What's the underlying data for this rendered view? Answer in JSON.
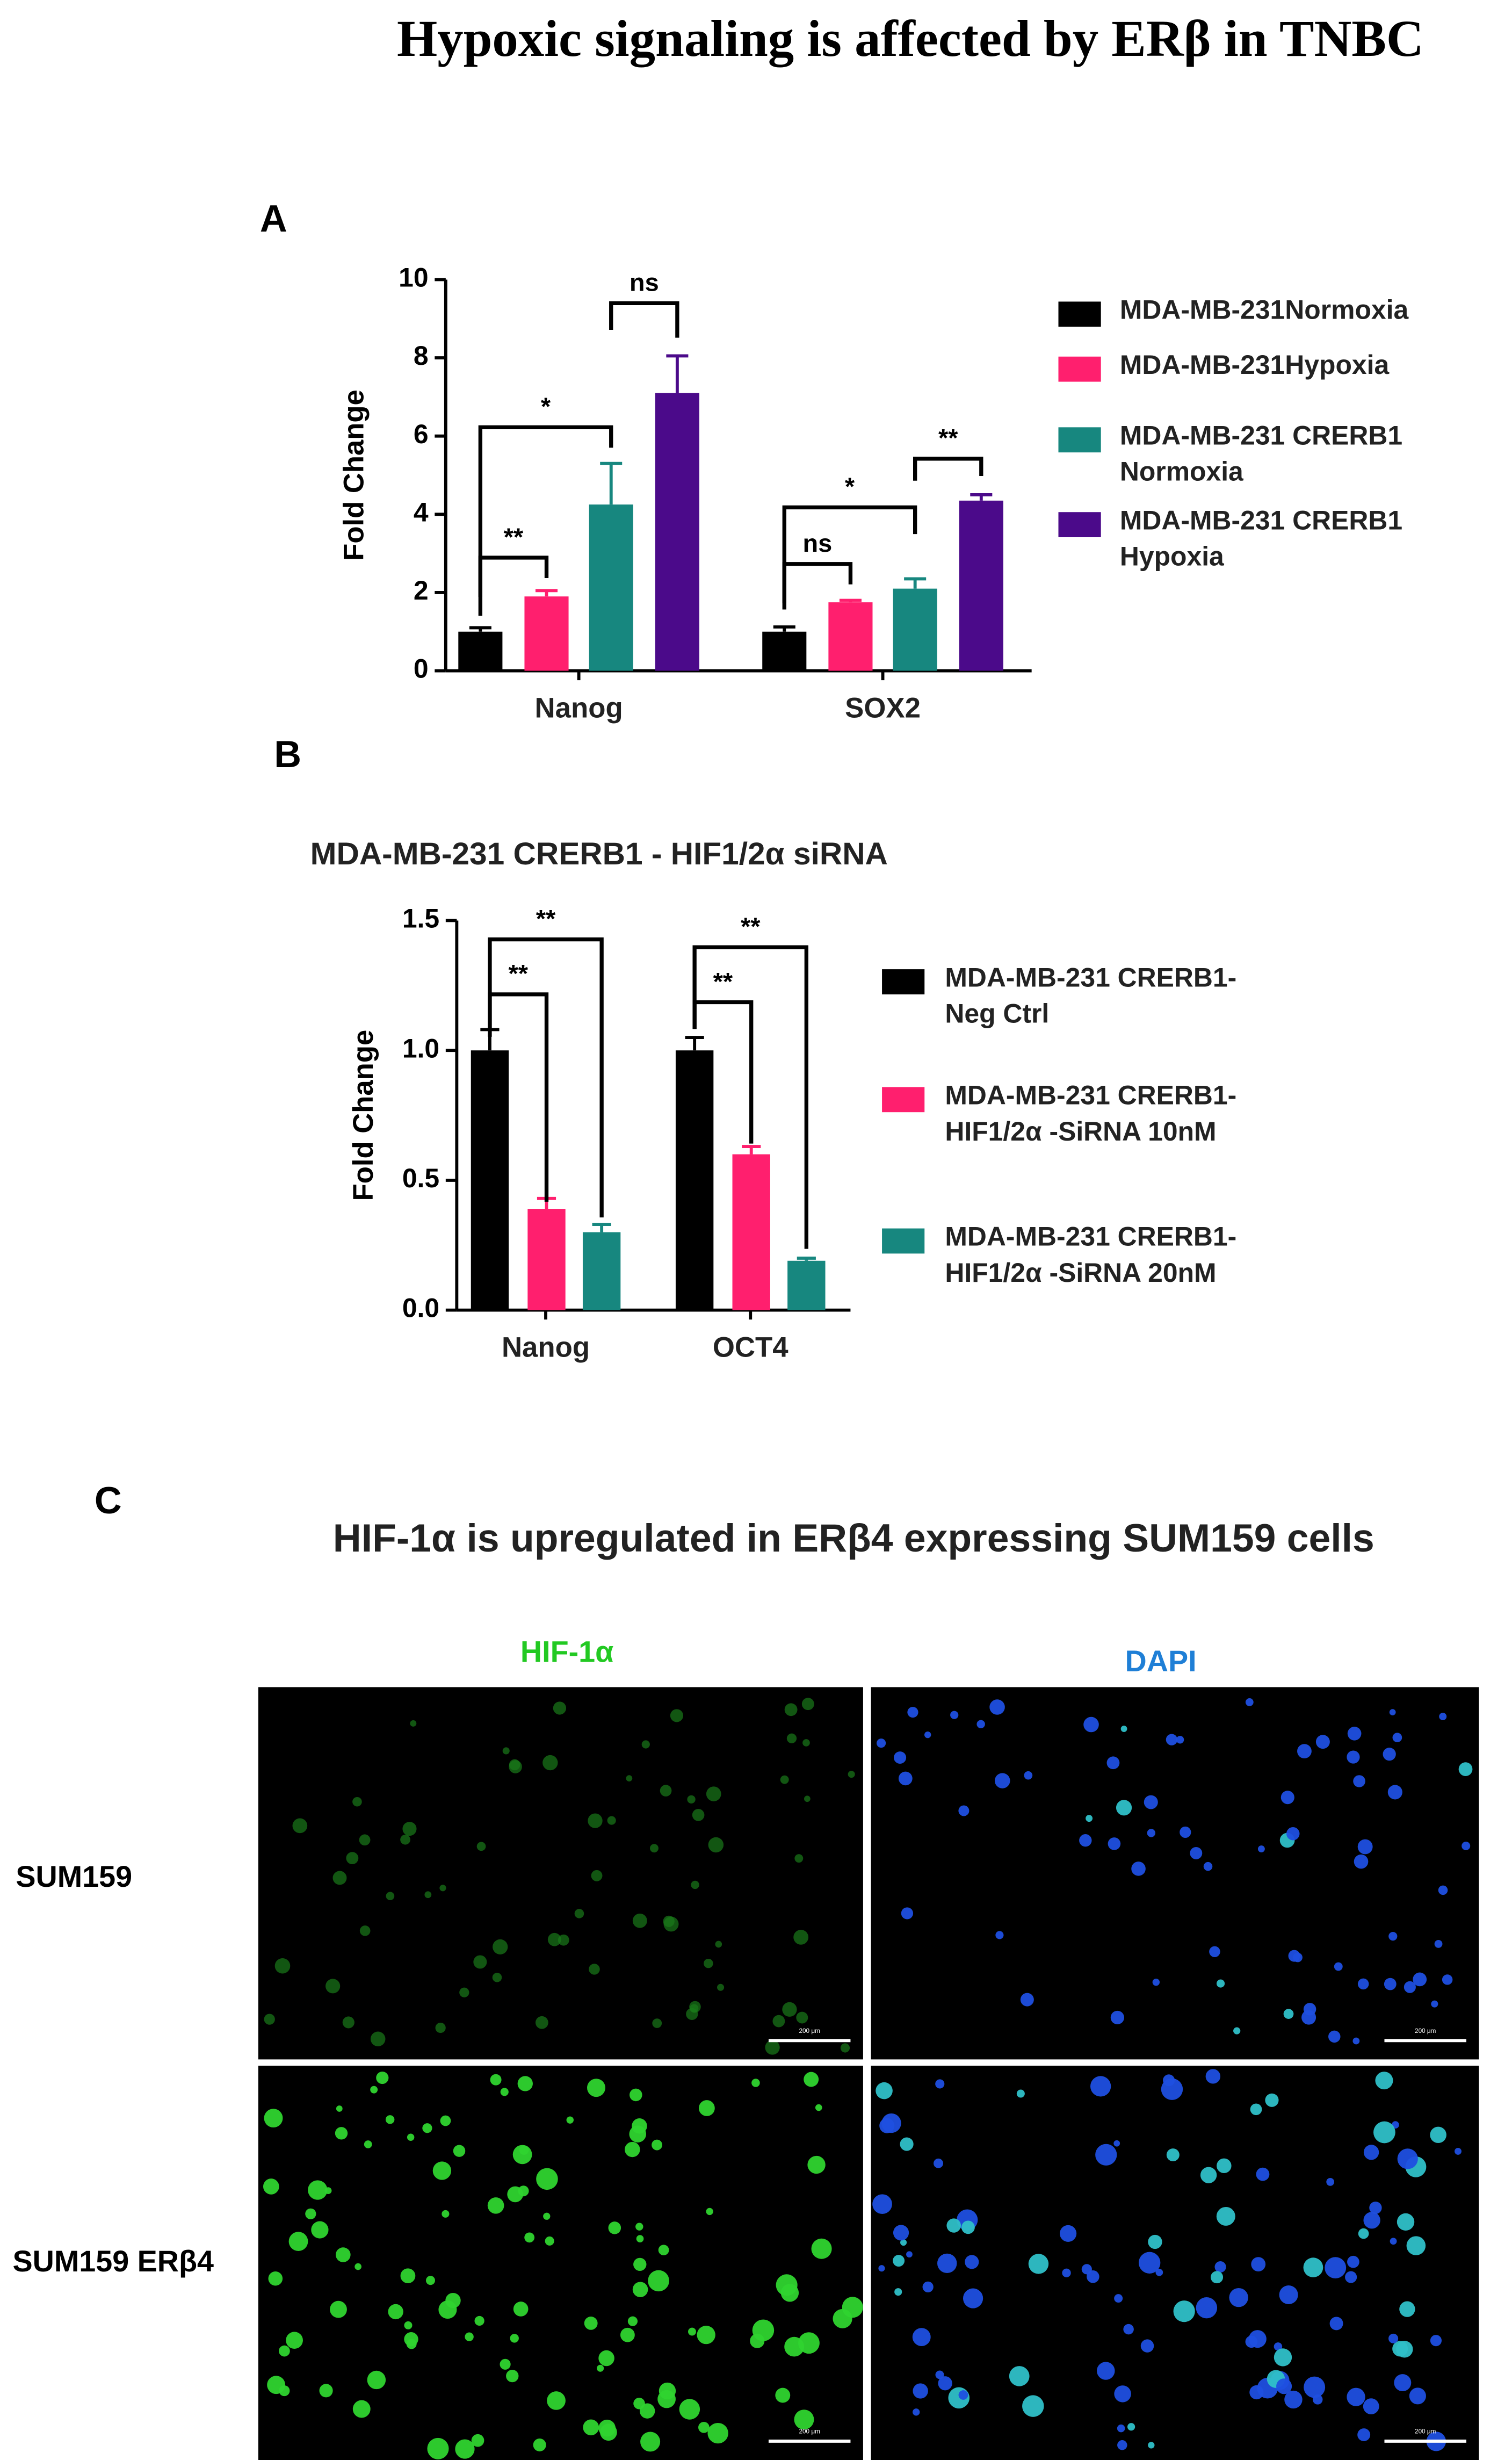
{
  "title": "Hypoxic signaling is affected by ERβ in TNBC",
  "chart_data": [
    {
      "type": "bar",
      "panel": "A",
      "ylabel": "Fold Change",
      "categories": [
        "Nanog",
        "SOX2"
      ],
      "series": [
        {
          "name": "MDA-MB-231Normoxia",
          "color": "#000000",
          "values": [
            1.0,
            1.0
          ],
          "errors": [
            0.1,
            0.12
          ]
        },
        {
          "name": "MDA-MB-231Hypoxia",
          "color": "#ff1f6e",
          "values": [
            1.9,
            1.75
          ],
          "errors": [
            0.15,
            0.05
          ]
        },
        {
          "name": "MDA-MB-231 CRERB1 Normoxia",
          "color": "#17877f",
          "values": [
            4.25,
            2.1
          ],
          "errors": [
            1.05,
            0.25
          ]
        },
        {
          "name": "MDA-MB-231 CRERB1 Hypoxia",
          "color": "#4b0a8a",
          "values": [
            7.1,
            4.35
          ],
          "errors": [
            0.95,
            0.15
          ]
        }
      ],
      "ylim": [
        0,
        10
      ],
      "yticks": [
        0,
        2,
        4,
        6,
        8,
        10
      ],
      "annotations": [
        "**",
        "*",
        "ns",
        "ns",
        "*",
        "**"
      ]
    },
    {
      "type": "bar",
      "panel": "B",
      "title": "MDA-MB-231 CRERB1 - HIF1/2α siRNA",
      "ylabel": "Fold Change",
      "categories": [
        "Nanog",
        "OCT4"
      ],
      "series": [
        {
          "name": "MDA-MB-231 CRERB1- Neg Ctrl",
          "color": "#000000",
          "values": [
            1.0,
            1.0
          ],
          "errors": [
            0.08,
            0.05
          ]
        },
        {
          "name": "MDA-MB-231 CRERB1- HIF1/2α -SiRNA 10nM",
          "color": "#ff1f6e",
          "values": [
            0.39,
            0.6
          ],
          "errors": [
            0.04,
            0.03
          ]
        },
        {
          "name": "MDA-MB-231 CRERB1- HIF1/2α -SiRNA 20nM",
          "color": "#17877f",
          "values": [
            0.3,
            0.19
          ],
          "errors": [
            0.03,
            0.01
          ]
        }
      ],
      "ylim": [
        0,
        1.5
      ],
      "yticks": [
        {
          "value": 0,
          "label": "0.0"
        },
        0.5,
        {
          "value": 1,
          "label": "1.0"
        },
        1.5
      ],
      "annotations": [
        "**",
        "**",
        "**",
        "**"
      ]
    }
  ],
  "panel_c": {
    "label": "C",
    "title": "HIF-1α is upregulated in ERβ4 expressing SUM159 cells",
    "columns": [
      "HIF-1α",
      "DAPI"
    ],
    "rows": [
      "SUM159",
      "SUM159 ERβ4"
    ],
    "scale_bar": "200 μm"
  }
}
